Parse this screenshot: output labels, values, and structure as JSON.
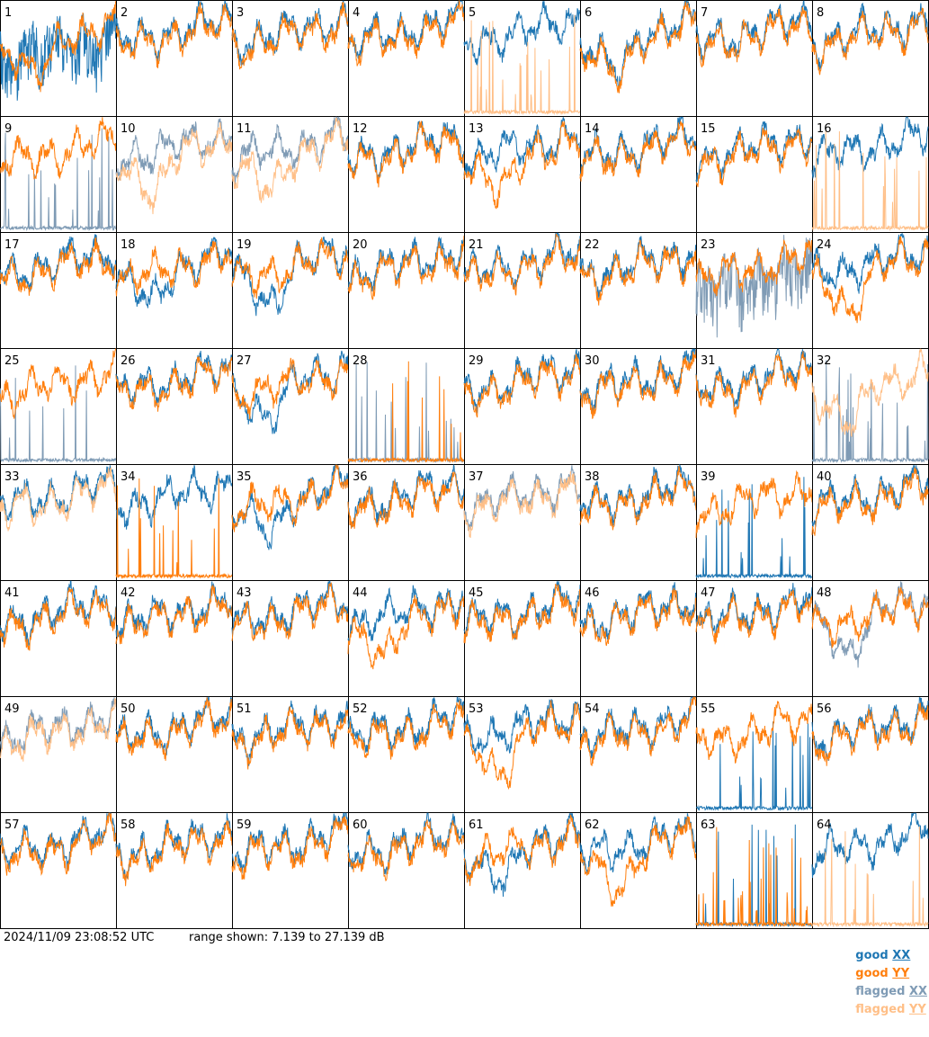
{
  "chart_data": {
    "type": "line",
    "layout": "small-multiples 8x8",
    "x": "frequency channel (unlabeled)",
    "y_unit": "dB",
    "ylim": [
      7.139,
      27.139
    ],
    "grid": false,
    "legend_position": "bottom-right",
    "series_styles": [
      {
        "name": "good XX",
        "color": "#1f77b4"
      },
      {
        "name": "good YY",
        "color": "#ff7f0e"
      },
      {
        "name": "flagged XX",
        "color": "#7f9bb5"
      },
      {
        "name": "flagged YY",
        "color": "#ffbf87"
      }
    ],
    "panels": [
      {
        "label": "1",
        "xx": "good",
        "yy": "good",
        "xx_shape": "noisy",
        "yy_shape": "dip"
      },
      {
        "label": "2",
        "xx": "good",
        "yy": "good",
        "xx_shape": "normal",
        "yy_shape": "normal"
      },
      {
        "label": "3",
        "xx": "good",
        "yy": "good",
        "xx_shape": "normal",
        "yy_shape": "normal"
      },
      {
        "label": "4",
        "xx": "good",
        "yy": "good",
        "xx_shape": "normal",
        "yy_shape": "normal"
      },
      {
        "label": "5",
        "xx": "good",
        "yy": "flagged",
        "xx_shape": "normal",
        "yy_shape": "spiky-low"
      },
      {
        "label": "6",
        "xx": "good",
        "yy": "good",
        "xx_shape": "dip",
        "yy_shape": "dip"
      },
      {
        "label": "7",
        "xx": "good",
        "yy": "good",
        "xx_shape": "normal",
        "yy_shape": "normal"
      },
      {
        "label": "8",
        "xx": "good",
        "yy": "good",
        "xx_shape": "normal",
        "yy_shape": "normal"
      },
      {
        "label": "9",
        "xx": "flagged",
        "yy": "good",
        "xx_shape": "spiky-low",
        "yy_shape": "normal"
      },
      {
        "label": "10",
        "xx": "flagged",
        "yy": "flagged",
        "xx_shape": "normal",
        "yy_shape": "dip"
      },
      {
        "label": "11",
        "xx": "flagged",
        "yy": "flagged",
        "xx_shape": "normal",
        "yy_shape": "dip"
      },
      {
        "label": "12",
        "xx": "good",
        "yy": "good",
        "xx_shape": "normal",
        "yy_shape": "normal"
      },
      {
        "label": "13",
        "xx": "good",
        "yy": "good",
        "xx_shape": "normal",
        "yy_shape": "dip"
      },
      {
        "label": "14",
        "xx": "good",
        "yy": "good",
        "xx_shape": "normal",
        "yy_shape": "normal"
      },
      {
        "label": "15",
        "xx": "good",
        "yy": "good",
        "xx_shape": "normal",
        "yy_shape": "normal"
      },
      {
        "label": "16",
        "xx": "good",
        "yy": "flagged",
        "xx_shape": "normal",
        "yy_shape": "spiky-low"
      },
      {
        "label": "17",
        "xx": "good",
        "yy": "good",
        "xx_shape": "normal",
        "yy_shape": "normal"
      },
      {
        "label": "18",
        "xx": "good",
        "yy": "good",
        "xx_shape": "dip",
        "yy_shape": "normal"
      },
      {
        "label": "19",
        "xx": "good",
        "yy": "good",
        "xx_shape": "dip",
        "yy_shape": "normal"
      },
      {
        "label": "20",
        "xx": "good",
        "yy": "good",
        "xx_shape": "normal",
        "yy_shape": "normal"
      },
      {
        "label": "21",
        "xx": "good",
        "yy": "good",
        "xx_shape": "normal",
        "yy_shape": "normal"
      },
      {
        "label": "22",
        "xx": "good",
        "yy": "good",
        "xx_shape": "normal",
        "yy_shape": "normal"
      },
      {
        "label": "23",
        "xx": "flagged",
        "yy": "good",
        "xx_shape": "noisy",
        "yy_shape": "normal"
      },
      {
        "label": "24",
        "xx": "good",
        "yy": "good",
        "xx_shape": "normal",
        "yy_shape": "dip"
      },
      {
        "label": "25",
        "xx": "flagged",
        "yy": "good",
        "xx_shape": "spiky-low",
        "yy_shape": "normal"
      },
      {
        "label": "26",
        "xx": "good",
        "yy": "good",
        "xx_shape": "normal",
        "yy_shape": "normal"
      },
      {
        "label": "27",
        "xx": "good",
        "yy": "good",
        "xx_shape": "dip",
        "yy_shape": "normal"
      },
      {
        "label": "28",
        "xx": "flagged",
        "yy": "good",
        "xx_shape": "spiky-low",
        "yy_shape": "spiky-low"
      },
      {
        "label": "29",
        "xx": "good",
        "yy": "good",
        "xx_shape": "normal",
        "yy_shape": "normal"
      },
      {
        "label": "30",
        "xx": "good",
        "yy": "good",
        "xx_shape": "normal",
        "yy_shape": "normal"
      },
      {
        "label": "31",
        "xx": "good",
        "yy": "good",
        "xx_shape": "normal",
        "yy_shape": "normal"
      },
      {
        "label": "32",
        "xx": "flagged",
        "yy": "flagged",
        "xx_shape": "spiky-low",
        "yy_shape": "dip"
      },
      {
        "label": "33",
        "xx": "good",
        "yy": "flagged",
        "xx_shape": "normal",
        "yy_shape": "normal"
      },
      {
        "label": "34",
        "xx": "good",
        "yy": "good",
        "xx_shape": "normal",
        "yy_shape": "spiky-low"
      },
      {
        "label": "35",
        "xx": "good",
        "yy": "good",
        "xx_shape": "dip",
        "yy_shape": "normal"
      },
      {
        "label": "36",
        "xx": "good",
        "yy": "good",
        "xx_shape": "normal",
        "yy_shape": "normal"
      },
      {
        "label": "37",
        "xx": "flagged",
        "yy": "flagged",
        "xx_shape": "normal",
        "yy_shape": "normal"
      },
      {
        "label": "38",
        "xx": "good",
        "yy": "good",
        "xx_shape": "normal",
        "yy_shape": "normal"
      },
      {
        "label": "39",
        "xx": "good",
        "yy": "good",
        "xx_shape": "spiky-low",
        "yy_shape": "normal"
      },
      {
        "label": "40",
        "xx": "good",
        "yy": "good",
        "xx_shape": "normal",
        "yy_shape": "normal"
      },
      {
        "label": "41",
        "xx": "good",
        "yy": "good",
        "xx_shape": "normal",
        "yy_shape": "normal"
      },
      {
        "label": "42",
        "xx": "good",
        "yy": "good",
        "xx_shape": "normal",
        "yy_shape": "normal"
      },
      {
        "label": "43",
        "xx": "good",
        "yy": "good",
        "xx_shape": "normal",
        "yy_shape": "normal"
      },
      {
        "label": "44",
        "xx": "good",
        "yy": "good",
        "xx_shape": "normal",
        "yy_shape": "dip"
      },
      {
        "label": "45",
        "xx": "good",
        "yy": "good",
        "xx_shape": "normal",
        "yy_shape": "normal"
      },
      {
        "label": "46",
        "xx": "good",
        "yy": "good",
        "xx_shape": "normal",
        "yy_shape": "normal"
      },
      {
        "label": "47",
        "xx": "good",
        "yy": "good",
        "xx_shape": "normal",
        "yy_shape": "normal"
      },
      {
        "label": "48",
        "xx": "flagged",
        "yy": "good",
        "xx_shape": "dip",
        "yy_shape": "normal"
      },
      {
        "label": "49",
        "xx": "flagged",
        "yy": "flagged",
        "xx_shape": "normal",
        "yy_shape": "normal"
      },
      {
        "label": "50",
        "xx": "good",
        "yy": "good",
        "xx_shape": "normal",
        "yy_shape": "normal"
      },
      {
        "label": "51",
        "xx": "good",
        "yy": "good",
        "xx_shape": "normal",
        "yy_shape": "normal"
      },
      {
        "label": "52",
        "xx": "good",
        "yy": "good",
        "xx_shape": "normal",
        "yy_shape": "normal"
      },
      {
        "label": "53",
        "xx": "good",
        "yy": "good",
        "xx_shape": "normal",
        "yy_shape": "dip"
      },
      {
        "label": "54",
        "xx": "good",
        "yy": "good",
        "xx_shape": "normal",
        "yy_shape": "normal"
      },
      {
        "label": "55",
        "xx": "good",
        "yy": "good",
        "xx_shape": "spiky-low",
        "yy_shape": "normal"
      },
      {
        "label": "56",
        "xx": "good",
        "yy": "good",
        "xx_shape": "normal",
        "yy_shape": "normal"
      },
      {
        "label": "57",
        "xx": "good",
        "yy": "good",
        "xx_shape": "normal",
        "yy_shape": "normal"
      },
      {
        "label": "58",
        "xx": "good",
        "yy": "good",
        "xx_shape": "normal",
        "yy_shape": "normal"
      },
      {
        "label": "59",
        "xx": "good",
        "yy": "good",
        "xx_shape": "normal",
        "yy_shape": "normal"
      },
      {
        "label": "60",
        "xx": "good",
        "yy": "good",
        "xx_shape": "normal",
        "yy_shape": "normal"
      },
      {
        "label": "61",
        "xx": "good",
        "yy": "good",
        "xx_shape": "dip",
        "yy_shape": "normal"
      },
      {
        "label": "62",
        "xx": "good",
        "yy": "good",
        "xx_shape": "normal",
        "yy_shape": "dip"
      },
      {
        "label": "63",
        "xx": "good",
        "yy": "good",
        "xx_shape": "spiky-low",
        "yy_shape": "spiky-low"
      },
      {
        "label": "64",
        "xx": "good",
        "yy": "flagged",
        "xx_shape": "normal",
        "yy_shape": "spiky-low"
      }
    ]
  },
  "footer": {
    "timestamp": "2024/11/09 23:08:52 UTC",
    "range_text": "range shown: 7.139 to 27.139 dB",
    "legend": [
      {
        "prefix": "good",
        "pol": "XX",
        "color": "#1f77b4"
      },
      {
        "prefix": "good",
        "pol": "YY",
        "color": "#ff7f0e"
      },
      {
        "prefix": "flagged",
        "pol": "XX",
        "color": "#7f9bb5"
      },
      {
        "prefix": "flagged",
        "pol": "YY",
        "color": "#ffbf87"
      }
    ]
  }
}
